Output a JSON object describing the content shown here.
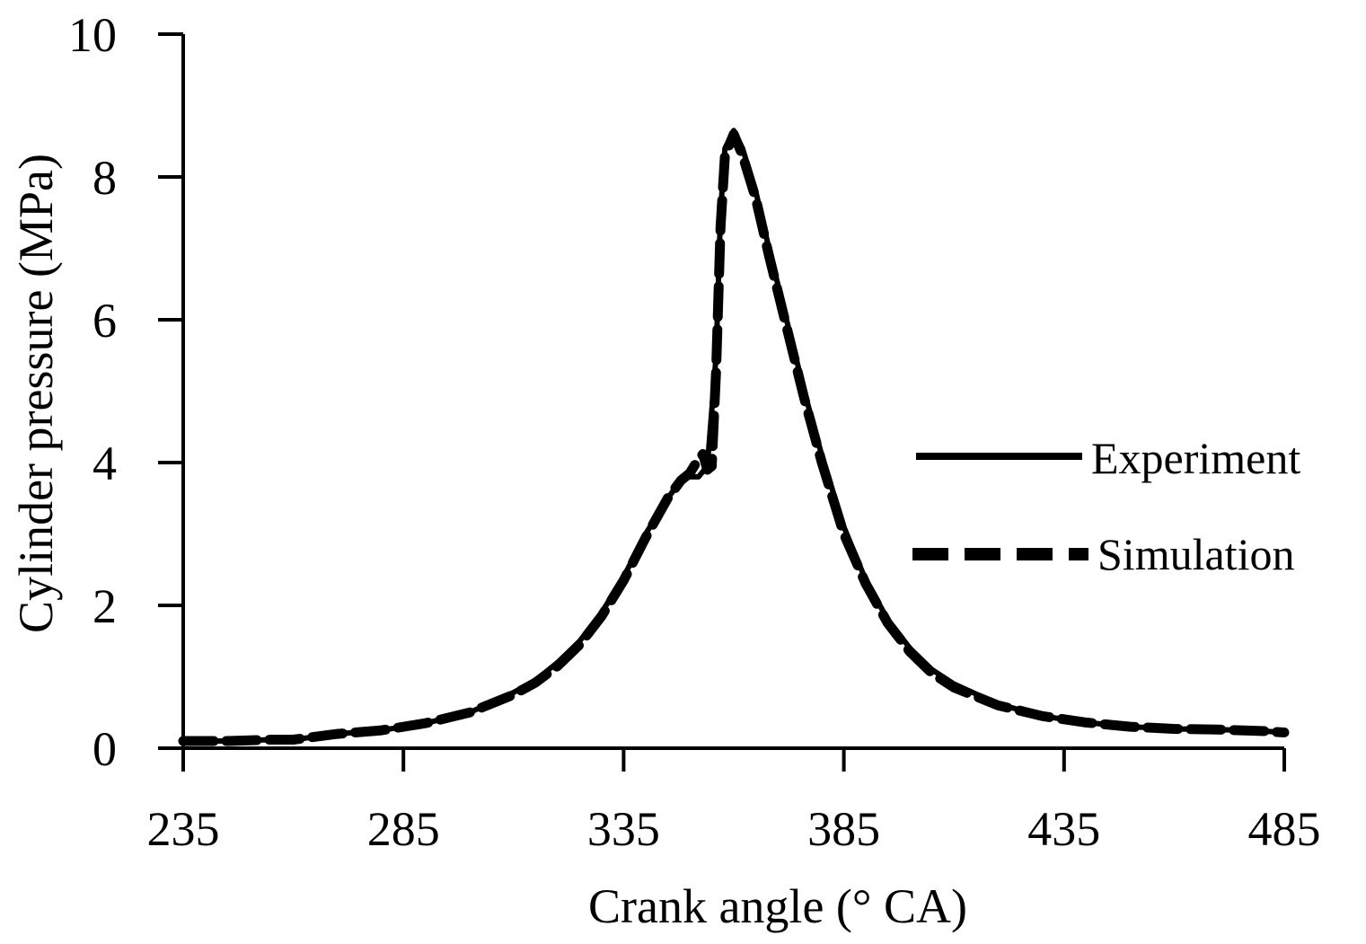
{
  "chart_data": {
    "type": "line",
    "xlabel": "Crank angle (° CA)",
    "ylabel": "Cylinder pressure (MPa)",
    "xlim": [
      235,
      485
    ],
    "ylim": [
      0,
      10
    ],
    "xticks": [
      "235",
      "285",
      "335",
      "385",
      "435",
      "485"
    ],
    "yticks": [
      "0",
      "2",
      "4",
      "6",
      "8",
      "10"
    ],
    "legend_position": "right",
    "grid": false,
    "series": [
      {
        "name": "Experiment",
        "style": "solid",
        "color": "#000000",
        "x": [
          235,
          245,
          255,
          260,
          270,
          280,
          290,
          300,
          310,
          315,
          320,
          325,
          330,
          335,
          340,
          345,
          348,
          350,
          352,
          354,
          356,
          357,
          358,
          360,
          362,
          365,
          368,
          372,
          376,
          380,
          385,
          390,
          395,
          400,
          405,
          410,
          420,
          430,
          440,
          450,
          460,
          470,
          480,
          485
        ],
        "y": [
          0.1,
          0.1,
          0.12,
          0.12,
          0.2,
          0.25,
          0.35,
          0.5,
          0.78,
          0.95,
          1.2,
          1.5,
          1.9,
          2.4,
          3.0,
          3.5,
          3.75,
          3.8,
          3.8,
          3.95,
          5.5,
          7.5,
          8.4,
          8.65,
          8.4,
          7.8,
          7.0,
          6.0,
          5.0,
          4.1,
          3.1,
          2.35,
          1.8,
          1.4,
          1.1,
          0.9,
          0.62,
          0.45,
          0.36,
          0.3,
          0.27,
          0.26,
          0.24,
          0.22
        ]
      },
      {
        "name": "Simulation",
        "style": "dashed",
        "color": "#000000",
        "x": [
          235,
          245,
          255,
          260,
          270,
          280,
          290,
          300,
          310,
          315,
          320,
          325,
          330,
          335,
          340,
          345,
          348,
          350,
          352,
          353,
          354,
          355,
          356,
          357,
          358,
          360,
          362,
          365,
          368,
          372,
          376,
          380,
          385,
          390,
          395,
          400,
          405,
          410,
          420,
          430,
          440,
          450,
          460,
          470,
          480,
          485
        ],
        "y": [
          0.1,
          0.1,
          0.12,
          0.12,
          0.2,
          0.25,
          0.35,
          0.5,
          0.75,
          0.92,
          1.15,
          1.45,
          1.85,
          2.35,
          2.95,
          3.5,
          3.75,
          3.85,
          4.05,
          4.12,
          3.9,
          3.95,
          5.3,
          7.3,
          8.3,
          8.6,
          8.3,
          7.7,
          6.9,
          5.9,
          4.9,
          4.0,
          3.0,
          2.3,
          1.75,
          1.35,
          1.05,
          0.85,
          0.6,
          0.45,
          0.36,
          0.3,
          0.27,
          0.26,
          0.24,
          0.22
        ]
      }
    ]
  }
}
